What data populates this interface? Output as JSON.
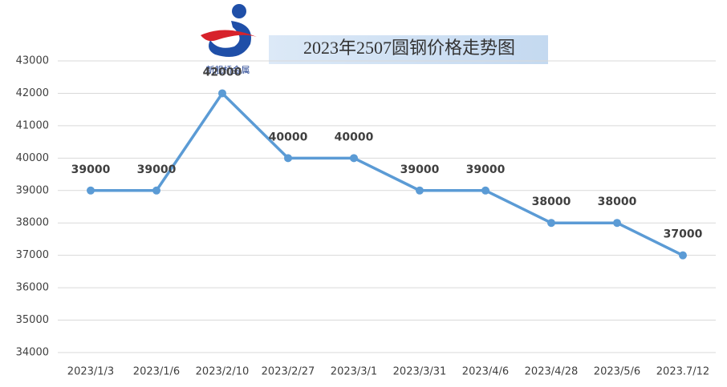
{
  "logo_text": "新舰桥金属",
  "chart_data": {
    "type": "line",
    "title": "2023年2507圆钢价格走势图",
    "categories": [
      "2023/1/3",
      "2023/1/6",
      "2023/2/10",
      "2023/2/27",
      "2023/3/1",
      "2023/3/31",
      "2023/4/6",
      "2023/4/28",
      "2023/5/6",
      "2023.7/12"
    ],
    "series": [
      {
        "color": "#5b9bd5",
        "values": [
          39000,
          39000,
          42000,
          40000,
          40000,
          39000,
          39000,
          38000,
          38000,
          37000
        ]
      }
    ],
    "ylim": [
      34000,
      43000
    ],
    "yticks": [
      34000,
      35000,
      36000,
      37000,
      38000,
      39000,
      40000,
      41000,
      42000,
      43000
    ],
    "grid": true,
    "data_labels": true
  }
}
